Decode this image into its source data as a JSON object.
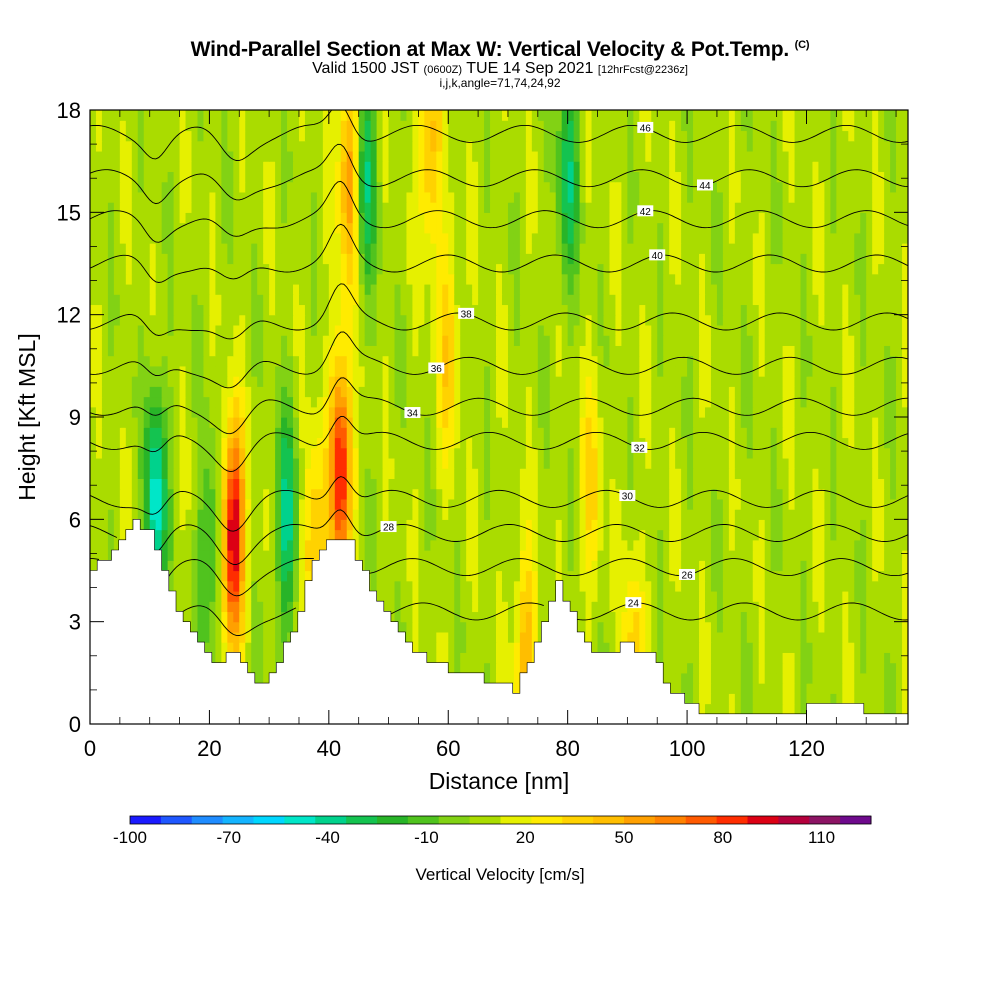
{
  "header": {
    "title": "Wind-Parallel Section at Max W: Vertical Velocity & Pot.Temp.",
    "title_mark": "(C)",
    "subtitle_a": "Valid 1500 JST",
    "subtitle_b": "(0600Z)",
    "subtitle_c": "TUE 14 Sep 2021",
    "subtitle_d": "[12hrFcst@2236z]",
    "subtitle2": "i,j,k,angle=71,74,24,92"
  },
  "chart_data": {
    "type": "heatmap",
    "title": "Wind-Parallel Section at Max W: Vertical Velocity & Pot.Temp.",
    "xlabel": "Distance [nm]",
    "ylabel": "Height [Kft MSL]",
    "xlim": [
      0,
      137
    ],
    "ylim": [
      0,
      18
    ],
    "x_ticks": [
      0,
      20,
      40,
      60,
      80,
      100,
      120
    ],
    "y_ticks": [
      0,
      3,
      6,
      9,
      12,
      15,
      18
    ],
    "colorbar": {
      "label": "Vertical Velocity [cm/s]",
      "tick_values": [
        -100,
        -70,
        -40,
        -10,
        20,
        50,
        80,
        110
      ],
      "range": [
        -100,
        125
      ],
      "colors": [
        "#1a1aff",
        "#1f57ff",
        "#1f8cff",
        "#14b4ff",
        "#00d7ff",
        "#00e6c8",
        "#00d28c",
        "#14c350",
        "#28b428",
        "#50c31e",
        "#82d214",
        "#aadc00",
        "#e6f000",
        "#ffeb00",
        "#ffd200",
        "#ffbe00",
        "#ffa000",
        "#ff8200",
        "#ff5a00",
        "#ff2d00",
        "#dc0014",
        "#b4003c",
        "#8c1464",
        "#6e0a8c"
      ]
    },
    "potential_temperature_contours_C": [
      24,
      26,
      28,
      30,
      32,
      34,
      36,
      38,
      40,
      42,
      44,
      46
    ],
    "vertical_velocity_features": [
      {
        "x_nm": 11,
        "height_kft": 6.5,
        "w_cm_s": -60
      },
      {
        "x_nm": 20,
        "height_kft": 5.0,
        "w_cm_s": -30
      },
      {
        "x_nm": 24,
        "height_kft": 5.5,
        "w_cm_s": 95
      },
      {
        "x_nm": 33,
        "height_kft": 6.0,
        "w_cm_s": -45
      },
      {
        "x_nm": 37.5,
        "height_kft": 5.0,
        "w_cm_s": 40
      },
      {
        "x_nm": 42,
        "height_kft": 7.5,
        "w_cm_s": 85
      },
      {
        "x_nm": 43.5,
        "height_kft": 16.0,
        "w_cm_s": 55
      },
      {
        "x_nm": 46,
        "height_kft": 16.0,
        "w_cm_s": -45
      },
      {
        "x_nm": 57,
        "height_kft": 17.0,
        "w_cm_s": 40
      },
      {
        "x_nm": 60,
        "height_kft": 11.0,
        "w_cm_s": 30
      },
      {
        "x_nm": 73,
        "height_kft": 2.0,
        "w_cm_s": 40
      },
      {
        "x_nm": 80,
        "height_kft": 16.0,
        "w_cm_s": -40
      },
      {
        "x_nm": 84,
        "height_kft": 7.0,
        "w_cm_s": 25
      },
      {
        "x_nm": 91,
        "height_kft": 1.8,
        "w_cm_s": 30
      }
    ],
    "terrain_height_kft": [
      {
        "x": 0,
        "h": 4.5
      },
      {
        "x": 3,
        "h": 5.0
      },
      {
        "x": 7,
        "h": 6.0
      },
      {
        "x": 10,
        "h": 5.5
      },
      {
        "x": 12,
        "h": 4.5
      },
      {
        "x": 14,
        "h": 3.5
      },
      {
        "x": 17,
        "h": 2.5
      },
      {
        "x": 20,
        "h": 1.9
      },
      {
        "x": 24,
        "h": 2.0
      },
      {
        "x": 28,
        "h": 1.0
      },
      {
        "x": 31,
        "h": 1.8
      },
      {
        "x": 34,
        "h": 3.0
      },
      {
        "x": 37,
        "h": 4.6
      },
      {
        "x": 40,
        "h": 5.5
      },
      {
        "x": 43,
        "h": 5.4
      },
      {
        "x": 46,
        "h": 4.2
      },
      {
        "x": 50,
        "h": 3.0
      },
      {
        "x": 55,
        "h": 2.0
      },
      {
        "x": 60,
        "h": 1.6
      },
      {
        "x": 65,
        "h": 1.4
      },
      {
        "x": 71,
        "h": 1.0
      },
      {
        "x": 74,
        "h": 2.2
      },
      {
        "x": 78,
        "h": 4.2
      },
      {
        "x": 81,
        "h": 3.0
      },
      {
        "x": 85,
        "h": 2.0
      },
      {
        "x": 89,
        "h": 2.3
      },
      {
        "x": 93,
        "h": 2.2
      },
      {
        "x": 97,
        "h": 1.0
      },
      {
        "x": 102,
        "h": 0.4
      },
      {
        "x": 112,
        "h": 0.3
      },
      {
        "x": 128,
        "h": 0.6
      },
      {
        "x": 130,
        "h": 0.3
      },
      {
        "x": 137,
        "h": 0.3
      }
    ]
  }
}
